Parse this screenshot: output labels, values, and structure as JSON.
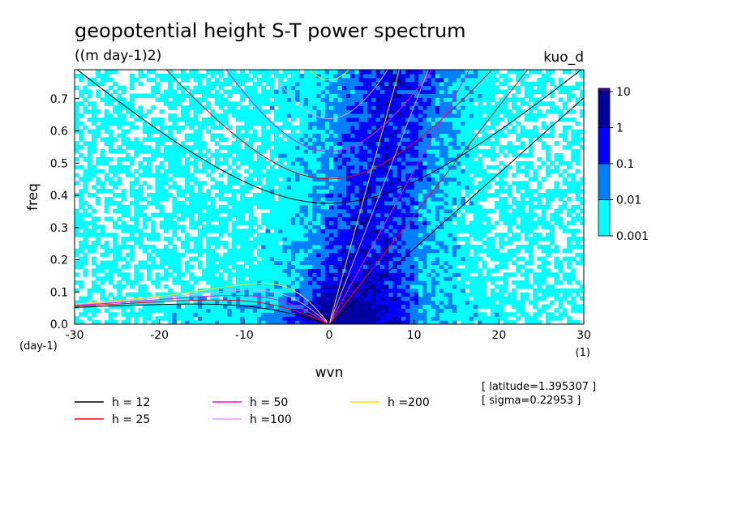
{
  "chart_data": {
    "type": "heatmap",
    "title": "geopotential height S-T power spectrum",
    "subtitle": "((m day-1)2)",
    "experiment": "kuo_d",
    "xlabel": "wvn",
    "ylabel": "freq",
    "x_unit": "(1)",
    "y_unit": "(day-1)",
    "xlim": [
      -30,
      30
    ],
    "ylim": [
      0,
      0.79
    ],
    "x_ticks": [
      -30,
      -20,
      -10,
      0,
      10,
      20,
      30
    ],
    "y_ticks": [
      0.0,
      0.1,
      0.2,
      0.3,
      0.4,
      0.5,
      0.6,
      0.7
    ],
    "x_tick_labels": [
      "-30",
      "-20",
      "-10",
      "0",
      "10",
      "20",
      "30"
    ],
    "y_tick_labels": [
      "0.0",
      "0.1",
      "0.2",
      "0.3",
      "0.4",
      "0.5",
      "0.6",
      "0.7"
    ],
    "colorbar": {
      "levels": [
        "0.001",
        "0.01",
        "0.1",
        "1",
        "10"
      ],
      "colors": [
        "#00ffff",
        "#0080ff",
        "#0000ff",
        "#0000a0",
        "#4000a0"
      ]
    },
    "background_color": "#ffffff",
    "dispersion_series": [
      {
        "name": "h = 12",
        "color": "#000000"
      },
      {
        "name": "h = 25",
        "color": "#ff0000"
      },
      {
        "name": "h = 50",
        "color": "#ff00ff"
      },
      {
        "name": "h =100",
        "color": "#e0a0ff"
      },
      {
        "name": "h =200",
        "color": "#ffe000"
      }
    ],
    "info_lines": [
      "[ latitude=1.395307 ]",
      "[ sigma=0.22953 ]"
    ]
  }
}
